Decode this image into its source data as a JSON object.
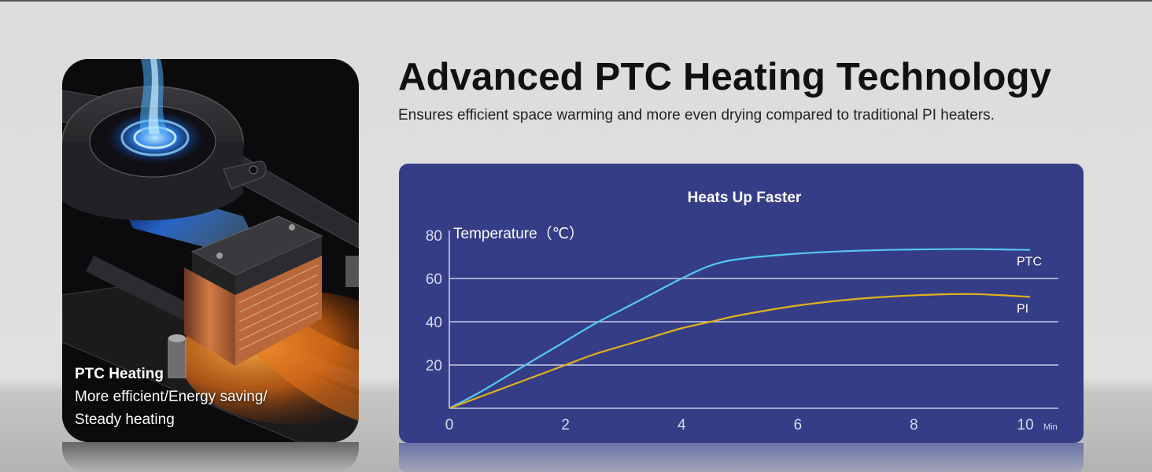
{
  "headline": "Advanced PTC Heating Technology",
  "subheadline": "Ensures efficient space warming and more even drying compared to traditional PI heaters.",
  "product_card": {
    "caption_title": "PTC Heating",
    "caption_line1": "More efficient/Energy saving/",
    "caption_line2": "Steady heating"
  },
  "colors": {
    "panel_bg": "#353d87",
    "ptc_line": "#56c6f2",
    "pi_line": "#e0b21c",
    "grid": "#c9cbe3"
  },
  "chart_data": {
    "type": "line",
    "title": "Heats Up Faster",
    "ylabel": "Temperature（℃）",
    "xlabel": "Min",
    "xlim": [
      0,
      10.5
    ],
    "ylim": [
      0,
      80
    ],
    "x_ticks": [
      0,
      2,
      4,
      6,
      8,
      10
    ],
    "y_ticks": [
      20,
      40,
      60,
      80
    ],
    "grid": "horizontal at 20, 40, 60",
    "legend": "line-end labels",
    "series": [
      {
        "name": "PTC",
        "color": "#56c6f2",
        "x": [
          0,
          0.5,
          1,
          1.5,
          2,
          2.5,
          3,
          3.5,
          4,
          4.5,
          5,
          6,
          7,
          8,
          9,
          10
        ],
        "y": [
          0,
          7,
          15,
          23,
          31,
          39,
          46,
          53,
          60,
          66,
          69,
          71.5,
          72.8,
          73.4,
          73.6,
          73.2
        ]
      },
      {
        "name": "PI",
        "color": "#e0b21c",
        "x": [
          0,
          0.5,
          1,
          1.5,
          2,
          2.5,
          3,
          3.5,
          4,
          4.5,
          5,
          6,
          7,
          8,
          9,
          10
        ],
        "y": [
          0,
          5,
          10,
          15,
          20,
          25,
          29,
          33,
          37,
          40,
          43,
          47.5,
          50.5,
          52.2,
          52.8,
          51.5
        ]
      }
    ]
  }
}
